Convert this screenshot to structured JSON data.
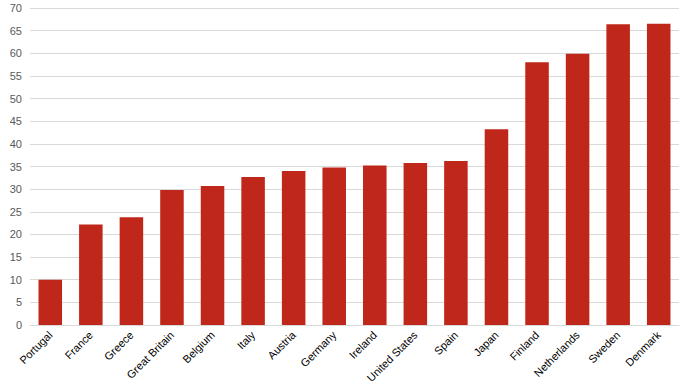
{
  "chart_data": {
    "type": "bar",
    "categories": [
      "Portugal",
      "France",
      "Greece",
      "Great Britain",
      "Belgium",
      "Italy",
      "Austria",
      "Germany",
      "Ireland",
      "United States",
      "Spain",
      "Japan",
      "Finland",
      "Netherlands",
      "Sweden",
      "Denmark"
    ],
    "values": [
      10,
      22.2,
      23.8,
      29.8,
      30.7,
      32.7,
      34,
      34.8,
      35.2,
      35.8,
      36.2,
      43.2,
      58,
      59.9,
      66.4,
      66.5
    ],
    "color": "#c0271b",
    "ylim": [
      0,
      70
    ],
    "yticks": [
      0,
      5,
      10,
      15,
      20,
      25,
      30,
      35,
      40,
      45,
      50,
      55,
      60,
      65,
      70
    ],
    "grid": true
  }
}
